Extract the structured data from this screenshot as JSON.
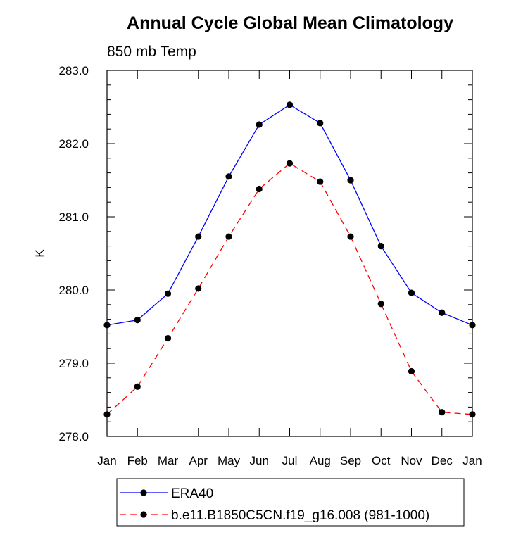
{
  "chart_data": {
    "type": "line",
    "title": "Annual Cycle Global Mean Climatology",
    "subtitle": "850 mb Temp",
    "xlabel": "",
    "ylabel": "K",
    "categories": [
      "Jan",
      "Feb",
      "Mar",
      "Apr",
      "May",
      "Jun",
      "Jul",
      "Aug",
      "Sep",
      "Oct",
      "Nov",
      "Dec",
      "Jan"
    ],
    "ylim": [
      278.0,
      283.0
    ],
    "yticks": [
      "278.0",
      "279.0",
      "280.0",
      "281.0",
      "282.0",
      "283.0"
    ],
    "grid": false,
    "legend_position": "bottom",
    "series": [
      {
        "name": "ERA40",
        "color": "#0000ff",
        "line_style": "solid",
        "marker": "filled-circle",
        "values": [
          279.52,
          279.59,
          279.95,
          280.73,
          281.55,
          282.26,
          282.53,
          282.28,
          281.5,
          280.6,
          279.96,
          279.69,
          279.52
        ]
      },
      {
        "name": "b.e11.B1850C5CN.f19_g16.008 (981-1000)",
        "color": "#ff0000",
        "line_style": "dashed",
        "marker": "filled-circle",
        "values": [
          278.3,
          278.68,
          279.34,
          280.02,
          280.73,
          281.38,
          281.73,
          281.48,
          280.73,
          279.81,
          278.89,
          278.33,
          278.3
        ]
      }
    ]
  }
}
